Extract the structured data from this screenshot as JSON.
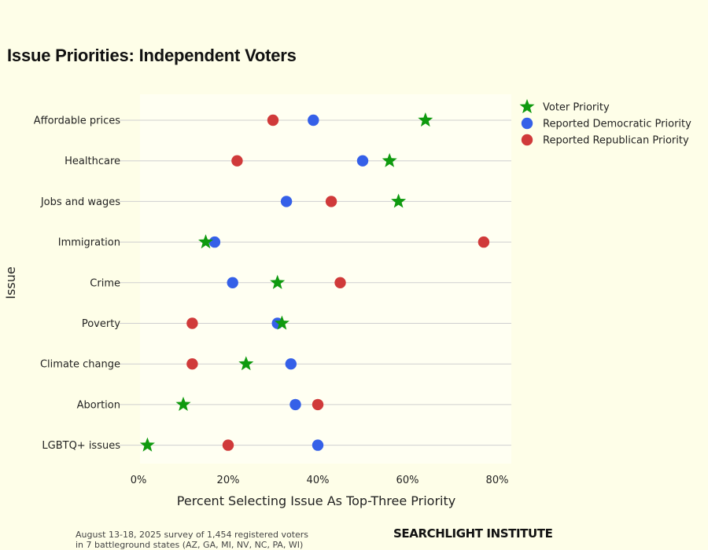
{
  "chart_data": {
    "type": "scatter",
    "title": "Issue Priorities: Independent Voters",
    "xlabel": "Percent Selecting Issue As Top-Three Priority",
    "ylabel": "Issue",
    "xlim": [
      0,
      80
    ],
    "x_ticks": [
      "0%",
      "20%",
      "40%",
      "60%",
      "80%"
    ],
    "x_tick_values": [
      0,
      20,
      40,
      60,
      80
    ],
    "categories": [
      "Affordable prices",
      "Healthcare",
      "Jobs and wages",
      "Immigration",
      "Crime",
      "Poverty",
      "Climate change",
      "Abortion",
      "LGBTQ+ issues"
    ],
    "series": [
      {
        "name": "Reported Republican Priority",
        "marker": "circle",
        "color": "#d03a3a",
        "values": [
          30,
          22,
          43,
          77,
          45,
          12,
          12,
          40,
          20
        ]
      },
      {
        "name": "Reported Democratic Priority",
        "marker": "circle",
        "color": "#3560e8",
        "values": [
          39,
          50,
          33,
          17,
          21,
          31,
          34,
          35,
          40
        ]
      },
      {
        "name": "Voter Priority",
        "marker": "star",
        "color": "#0f9a0f",
        "values": [
          64,
          56,
          58,
          15,
          31,
          32,
          24,
          10,
          2
        ]
      }
    ],
    "legend_order": [
      "Voter Priority",
      "Reported Democratic Priority",
      "Reported Republican Priority"
    ],
    "legend_position": "top-right",
    "grid": "horizontal"
  },
  "footnote": {
    "line1": "August 13-18, 2025 survey of 1,454 registered voters",
    "line2": "in 7 battleground states (AZ, GA, MI, NV, NC, PA, WI)"
  },
  "brand": "SEARCHLIGHT INSTITUTE",
  "colors": {
    "background": "#fefee8",
    "grid": "#cfcfcf"
  }
}
